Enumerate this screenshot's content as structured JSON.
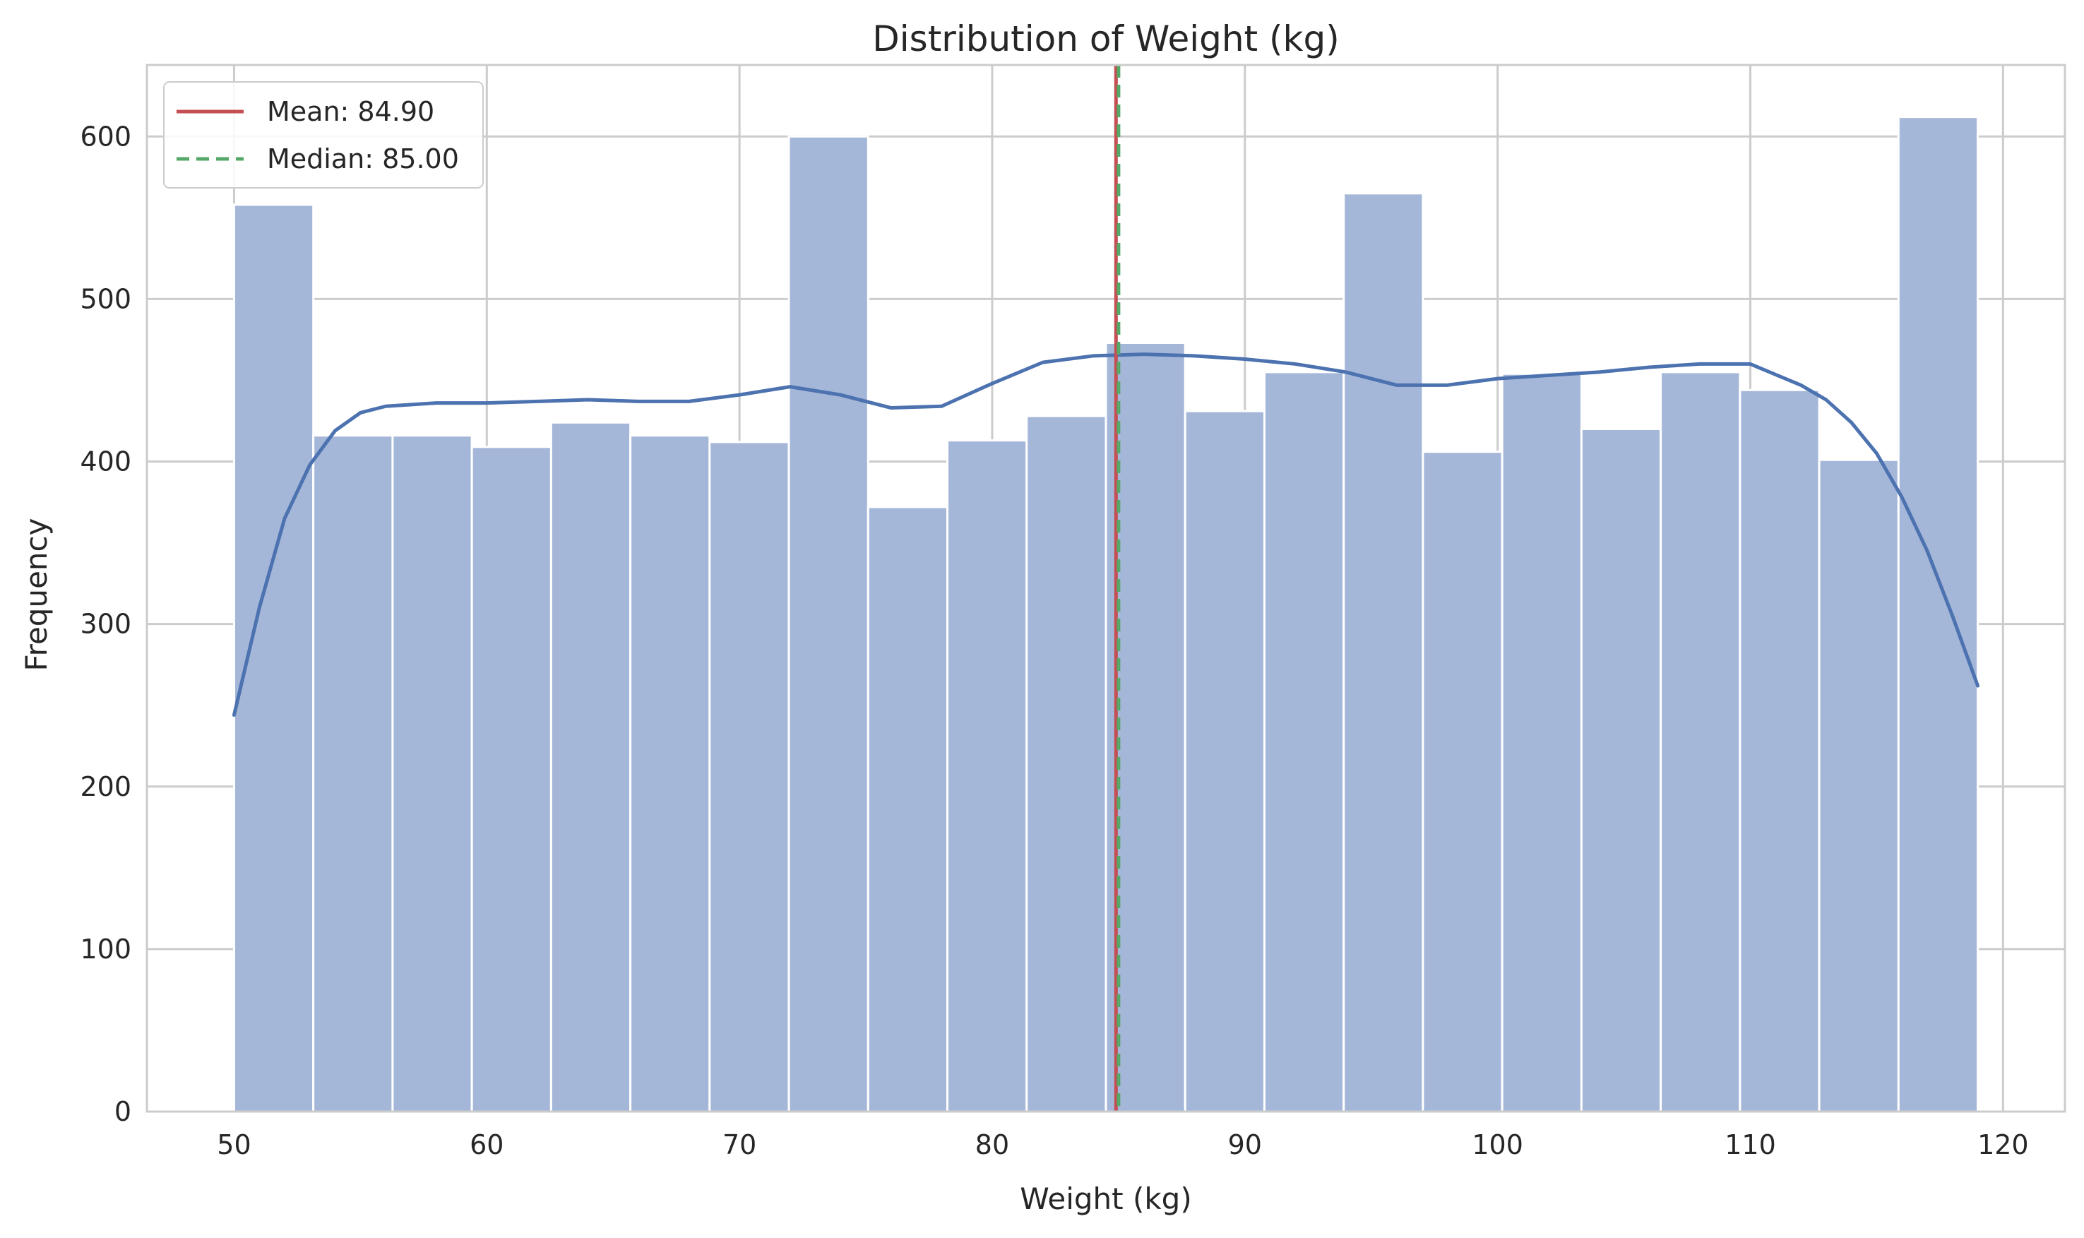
{
  "chart_data": {
    "type": "bar",
    "title": "Distribution of Weight (kg)",
    "xlabel": "Weight (kg)",
    "ylabel": "Frequency",
    "xlim": [
      46.55,
      122.45
    ],
    "ylim": [
      0,
      644
    ],
    "xticks": [
      50,
      60,
      70,
      80,
      90,
      100,
      110,
      120
    ],
    "yticks": [
      0,
      100,
      200,
      300,
      400,
      500,
      600
    ],
    "grid": true,
    "legend_position": "top-left",
    "bins": {
      "start": 50,
      "end": 119,
      "count": 22
    },
    "series": [
      {
        "name": "histogram",
        "values": [
          558,
          416,
          416,
          409,
          424,
          416,
          412,
          600,
          372,
          413,
          428,
          473,
          431,
          455,
          565,
          406,
          454,
          420,
          455,
          444,
          401,
          612
        ]
      }
    ],
    "kde": {
      "x": [
        50,
        51,
        52,
        53,
        54,
        55,
        56,
        58,
        60,
        62,
        64,
        66,
        68,
        70,
        72,
        74,
        76,
        78,
        80,
        82,
        84,
        86,
        88,
        90,
        92,
        94,
        96,
        98,
        100,
        102,
        104,
        106,
        108,
        110,
        112,
        113,
        114,
        115,
        116,
        117,
        118,
        119
      ],
      "y": [
        244,
        310,
        365,
        398,
        419,
        430,
        434,
        436,
        436,
        437,
        438,
        437,
        437,
        441,
        446,
        441,
        433,
        434,
        448,
        461,
        465,
        466,
        465,
        463,
        460,
        455,
        447,
        447,
        451,
        453,
        455,
        458,
        460,
        460,
        447,
        438,
        424,
        405,
        378,
        345,
        305,
        262
      ]
    },
    "reference_lines": [
      {
        "name": "Mean",
        "label": "Mean: 84.90",
        "value": 84.9,
        "style": "solid",
        "color": "#c44e52"
      },
      {
        "name": "Median",
        "label": "Median: 85.00",
        "value": 85.0,
        "style": "dashed",
        "color": "#55a868"
      }
    ],
    "colors": {
      "bar_fill": "#a5b7d8",
      "bar_edge": "#ffffff",
      "kde_line": "#4c72b0",
      "grid": "#cccccc",
      "spine": "#cccccc",
      "text": "#262626"
    }
  }
}
